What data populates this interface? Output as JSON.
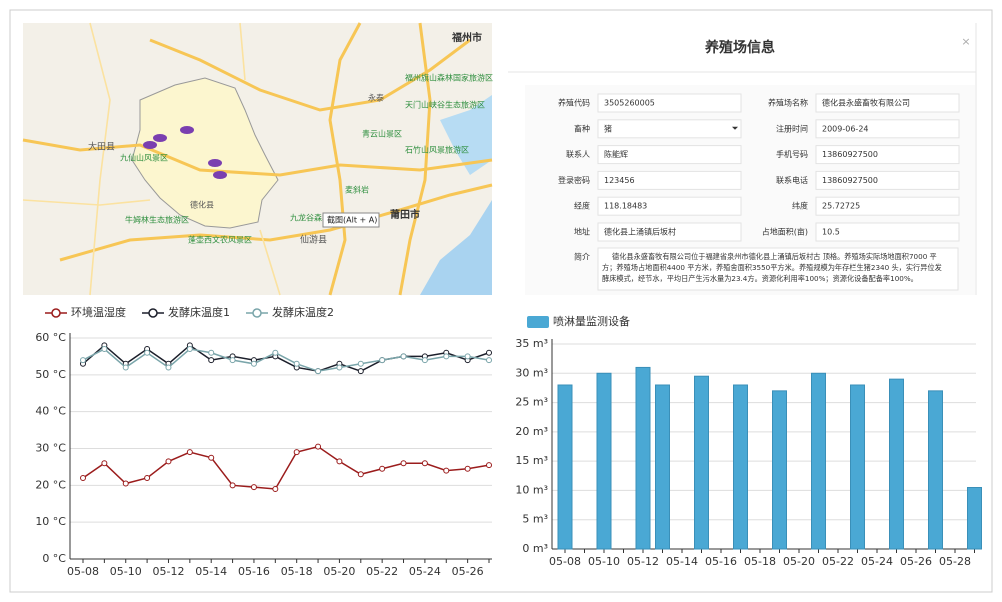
{
  "map": {
    "labels": [
      "福州市",
      "永泰",
      "莆田市",
      "大田县",
      "德化县",
      "仙游县",
      "九龙谷森林",
      "青云山景区",
      "天门山峡谷生态旅游区",
      "石竹山风景旅游区",
      "福州旗山森林国家旅游区",
      "牛姆林生态旅游区",
      "蓬壶西文农风景区",
      "九仙山风景区",
      "麦斜岩",
      "截图(Alt + A)"
    ]
  },
  "farm_info": {
    "title": "养殖场信息",
    "close": "×",
    "rows": [
      [
        {
          "label": "养殖代码",
          "value": "3505260005"
        },
        {
          "label": "养殖场名称",
          "value": "德化县永盛畜牧有限公司"
        }
      ],
      [
        {
          "label": "畜种",
          "value": "猪"
        },
        {
          "label": "注册时间",
          "value": "2009-06-24"
        }
      ],
      [
        {
          "label": "联系人",
          "value": "陈能辉"
        },
        {
          "label": "手机号码",
          "value": "13860927500"
        }
      ],
      [
        {
          "label": "登录密码",
          "value": "123456"
        },
        {
          "label": "联系电话",
          "value": "13860927500"
        }
      ],
      [
        {
          "label": "经度",
          "value": "118.18483"
        },
        {
          "label": "纬度",
          "value": "25.72725"
        }
      ],
      [
        {
          "label": "地址",
          "value": "德化县上涌镇后坂村"
        },
        {
          "label": "占地面积(亩)",
          "value": "10.5"
        }
      ]
    ],
    "intro_label": "简介",
    "intro_lines": [
      "德化县永盛畜牧有限公司位于福建省泉州市德化县上涌镇后坂村古 顶格。养殖场实际场地面积7000 平",
      "方；养殖场占地面积4400 平方米，养殖舍面积3550平方米。养殖规模为年存栏生猪2340 头，实行异位发",
      "酵床模式，经节水，平均日产生污水量为23.4方。资源化利用率100%；资源化设备配备率100%。"
    ]
  },
  "chart_data": [
    {
      "type": "line",
      "categories": [
        "05-08",
        null,
        "05-10",
        null,
        "05-12",
        null,
        "05-14",
        null,
        "05-16",
        null,
        "05-18",
        null,
        "05-20",
        null,
        "05-22",
        null,
        "05-24",
        null,
        "05-26",
        null
      ],
      "series": [
        {
          "name": "环境温湿度",
          "color": "#9b1c1c",
          "values": [
            22,
            26,
            20.5,
            22,
            26.5,
            29,
            27.5,
            20,
            19.5,
            19,
            29,
            30.5,
            26.5,
            23,
            24.5,
            26,
            26,
            24,
            24.5,
            25.5
          ]
        },
        {
          "name": "发酵床温度1",
          "color": "#1c1f2b",
          "values": [
            53,
            58,
            53,
            57,
            53,
            58,
            54,
            55,
            54,
            55,
            52,
            51,
            53,
            51,
            54,
            55,
            55,
            56,
            54,
            56
          ]
        },
        {
          "name": "发酵床温度2",
          "color": "#7aa5aa",
          "values": [
            54,
            57,
            52,
            56,
            52,
            57,
            56,
            54,
            53,
            56,
            53,
            51,
            52,
            53,
            54,
            55,
            54,
            55,
            55,
            54
          ]
        }
      ],
      "ylim": [
        0,
        60
      ],
      "yticks": [
        {
          "value": 0,
          "label": "0 °C"
        },
        {
          "value": 10,
          "label": "10 °C"
        },
        {
          "value": 20,
          "label": "20 °C"
        },
        {
          "value": 30,
          "label": "30 °C"
        },
        {
          "value": 40,
          "label": "40 °C"
        },
        {
          "value": 50,
          "label": "50 °C"
        },
        {
          "value": 60,
          "label": "60 °C"
        }
      ],
      "grid": true
    },
    {
      "type": "bar",
      "categories": [
        "05-08",
        null,
        "05-10",
        null,
        "05-12",
        null,
        "05-14",
        null,
        "05-16",
        null,
        "05-18",
        null,
        "05-20",
        null,
        "05-22",
        null,
        "05-24",
        null,
        "05-26",
        null,
        "05-28",
        null
      ],
      "series": [
        {
          "name": "喷淋量监测设备",
          "color": "#4aa8d4",
          "values": [
            28,
            null,
            30,
            null,
            31,
            28,
            null,
            29.5,
            null,
            28,
            null,
            27,
            null,
            30,
            null,
            28,
            null,
            29,
            null,
            27,
            null,
            10.5
          ]
        }
      ],
      "ylim": [
        0,
        35
      ],
      "yticks": [
        {
          "value": 0,
          "label": "0 m³"
        },
        {
          "value": 5,
          "label": "5 m³"
        },
        {
          "value": 10,
          "label": "10 m³"
        },
        {
          "value": 15,
          "label": "15 m³"
        },
        {
          "value": 20,
          "label": "20 m³"
        },
        {
          "value": 25,
          "label": "25 m³"
        },
        {
          "value": 30,
          "label": "30 m³"
        },
        {
          "value": 35,
          "label": "35 m³"
        }
      ],
      "grid": true
    }
  ]
}
